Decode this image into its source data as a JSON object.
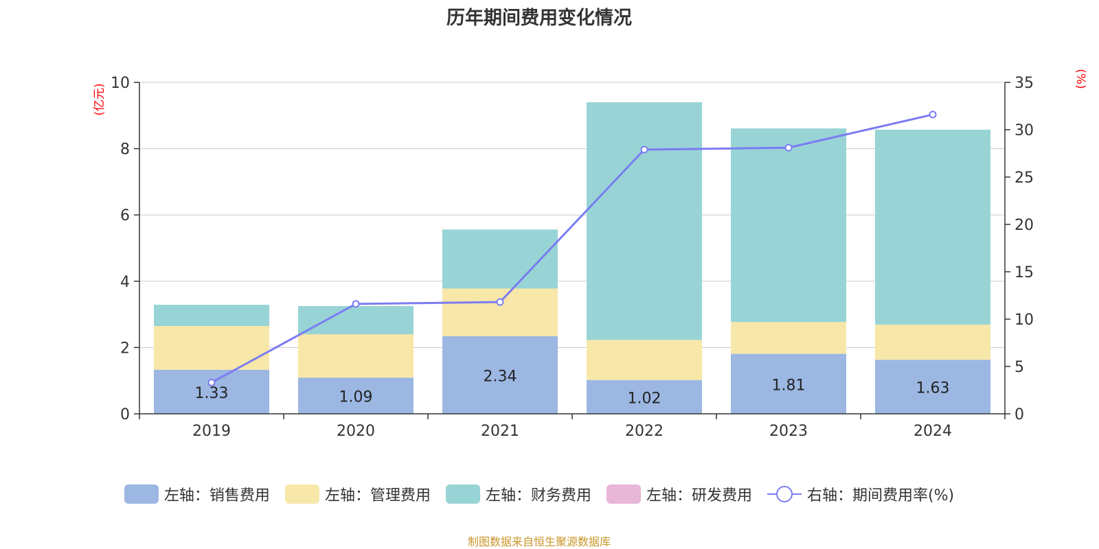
{
  "chart_data": {
    "type": "bar",
    "title": "历年期间费用变化情况",
    "categories": [
      "2019",
      "2020",
      "2021",
      "2022",
      "2023",
      "2024"
    ],
    "series": [
      {
        "name": "左轴：销售费用",
        "axis": "left",
        "type": "bar",
        "color": "#9bb7e2",
        "values": [
          1.33,
          1.09,
          2.34,
          1.02,
          1.81,
          1.63
        ],
        "labels": [
          "1.33",
          "1.09",
          "2.34",
          "1.02",
          "1.81",
          "1.63"
        ]
      },
      {
        "name": "左轴：管理费用",
        "axis": "left",
        "type": "bar",
        "color": "#f7e7a8",
        "values": [
          1.32,
          1.31,
          1.44,
          1.21,
          0.96,
          1.06
        ]
      },
      {
        "name": "左轴：财务费用",
        "axis": "left",
        "type": "bar",
        "color": "#98d4d5",
        "values": [
          0.64,
          0.85,
          1.78,
          7.17,
          5.84,
          5.88
        ]
      },
      {
        "name": "左轴：研发费用",
        "axis": "left",
        "type": "bar",
        "color": "#e8b6d6",
        "values": [
          0,
          0,
          0,
          0,
          0,
          0
        ]
      },
      {
        "name": "右轴：期间费用率(%)",
        "axis": "right",
        "type": "line",
        "color": "#7b7cf2",
        "values": [
          3.3,
          11.6,
          11.8,
          27.9,
          28.1,
          31.6
        ]
      }
    ],
    "left_axis": {
      "label": "(亿元)",
      "min": 0,
      "max": 10,
      "ticks": [
        "0",
        "2",
        "4",
        "6",
        "8",
        "10"
      ]
    },
    "right_axis": {
      "label": "(%)",
      "min": 0,
      "max": 35,
      "ticks": [
        "0",
        "5",
        "10",
        "15",
        "20",
        "25",
        "30",
        "35"
      ]
    },
    "grid": true,
    "legend_position": "bottom",
    "axis_label_color": "#ff0000"
  },
  "source_note": "制图数据来自恒生聚源数据库"
}
